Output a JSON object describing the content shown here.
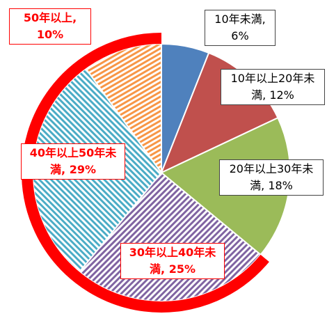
{
  "chart_data": {
    "type": "pie",
    "categories": [
      "10年未満,",
      "10年以上20年未満,",
      "20年以上30年未満,",
      "30年以上40年未満,",
      "40年以上50年未満,",
      "50年以上,"
    ],
    "values": [
      6,
      12,
      18,
      25,
      29,
      10
    ],
    "value_labels": [
      "6%",
      "12%",
      "18%",
      "25%",
      "29%",
      "10%"
    ],
    "colors": [
      "#4f81bd",
      "#c0504d",
      "#9bbb59",
      "#8064a2",
      "#4bacc6",
      "#f79646"
    ],
    "highlight": [
      3,
      4,
      5
    ],
    "highlight_color": "#ff0000"
  }
}
